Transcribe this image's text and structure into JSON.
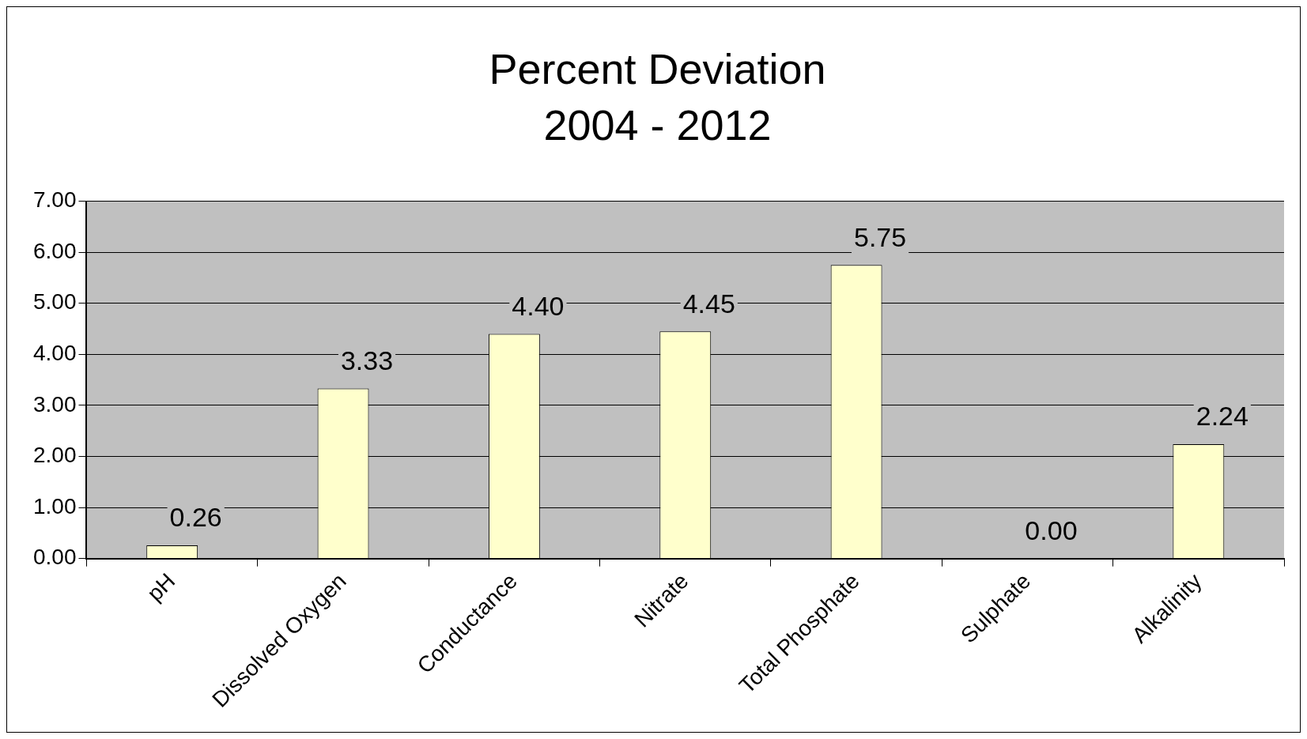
{
  "chart_data": {
    "type": "bar",
    "title": "Percent Deviation",
    "subtitle": "2004 - 2012",
    "categories": [
      "pH",
      "Dissolved Oxygen",
      "Conductance",
      "Nitrate",
      "Total Phosphate",
      "Sulphate",
      "Alkalinity"
    ],
    "values": [
      0.26,
      3.33,
      4.4,
      4.45,
      5.75,
      0.0,
      2.24
    ],
    "value_labels": [
      "0.26",
      "3.33",
      "4.40",
      "4.45",
      "5.75",
      "0.00",
      "2.24"
    ],
    "color": "#ffffcc",
    "ylim": [
      0,
      7
    ],
    "yticks": [
      {
        "value": 0,
        "label": "0.00"
      },
      {
        "value": 1,
        "label": "1.00"
      },
      {
        "value": 2,
        "label": "2.00"
      },
      {
        "value": 3,
        "label": "3.00"
      },
      {
        "value": 4,
        "label": "4.00"
      },
      {
        "value": 5,
        "label": "5.00"
      },
      {
        "value": 6,
        "label": "6.00"
      },
      {
        "value": 7,
        "label": "7.00"
      }
    ],
    "grid": "y",
    "legend": false
  }
}
